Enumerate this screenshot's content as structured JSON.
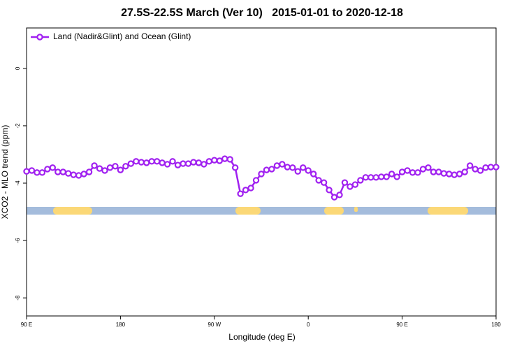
{
  "chart_data": {
    "type": "line",
    "title": "27.5S-22.5S March (Ver 10)   2015-01-01 to 2020-12-18",
    "xlabel": "Longitude (deg E)",
    "ylabel": "XCO2 - MLO trend (ppm)",
    "x": [
      90,
      95,
      100,
      105,
      110,
      115,
      120,
      125,
      130,
      135,
      140,
      145,
      150,
      155,
      160,
      165,
      170,
      175,
      180,
      185,
      190,
      195,
      200,
      205,
      210,
      215,
      220,
      225,
      230,
      235,
      240,
      245,
      250,
      255,
      260,
      265,
      270,
      275,
      280,
      285,
      290,
      295,
      300,
      305,
      310,
      315,
      320,
      325,
      330,
      335,
      340,
      345,
      350,
      355,
      360,
      365,
      370,
      375,
      380,
      385,
      390,
      395,
      400,
      405,
      410,
      415,
      420,
      425,
      430,
      435,
      440,
      445,
      450,
      455,
      460,
      465,
      470,
      475,
      480,
      485,
      490,
      495,
      500,
      505,
      510,
      515,
      520,
      525,
      530,
      535,
      540
    ],
    "series": [
      {
        "name": "Land (Nadir&Glint) and Ocean (Glint)",
        "color": "#a020f0",
        "values": [
          -3.59,
          -3.56,
          -3.63,
          -3.63,
          -3.51,
          -3.46,
          -3.61,
          -3.61,
          -3.66,
          -3.71,
          -3.73,
          -3.68,
          -3.61,
          -3.39,
          -3.49,
          -3.56,
          -3.46,
          -3.41,
          -3.54,
          -3.41,
          -3.32,
          -3.24,
          -3.27,
          -3.29,
          -3.24,
          -3.24,
          -3.29,
          -3.34,
          -3.24,
          -3.37,
          -3.32,
          -3.32,
          -3.27,
          -3.29,
          -3.34,
          -3.24,
          -3.2,
          -3.22,
          -3.15,
          -3.17,
          -3.46,
          -4.37,
          -4.24,
          -4.17,
          -3.9,
          -3.68,
          -3.54,
          -3.51,
          -3.39,
          -3.34,
          -3.44,
          -3.46,
          -3.59,
          -3.46,
          -3.56,
          -3.68,
          -3.9,
          -3.98,
          -4.24,
          -4.49,
          -4.41,
          -3.98,
          -4.12,
          -4.05,
          -3.9,
          -3.8,
          -3.8,
          -3.8,
          -3.78,
          -3.78,
          -3.68,
          -3.78,
          -3.61,
          -3.56,
          -3.63,
          -3.63,
          -3.51,
          -3.46,
          -3.61,
          -3.61,
          -3.66,
          -3.68,
          -3.71,
          -3.68,
          -3.61,
          -3.39,
          -3.51,
          -3.56,
          -3.46,
          -3.44,
          -3.44
        ]
      }
    ],
    "xlim": [
      90,
      540
    ],
    "xticks": [
      {
        "value": 90,
        "label": "90 E"
      },
      180,
      {
        "value": 270,
        "label": "90 W"
      },
      {
        "value": 360,
        "label": "0"
      },
      {
        "value": 450,
        "label": "90 E"
      },
      {
        "value": 540,
        "label": "180"
      }
    ],
    "ylim": [
      -8.63,
      1.41
    ],
    "yticks": [
      0,
      -2,
      -4,
      -6,
      -8
    ],
    "legend": "top-left",
    "grid": false
  }
}
